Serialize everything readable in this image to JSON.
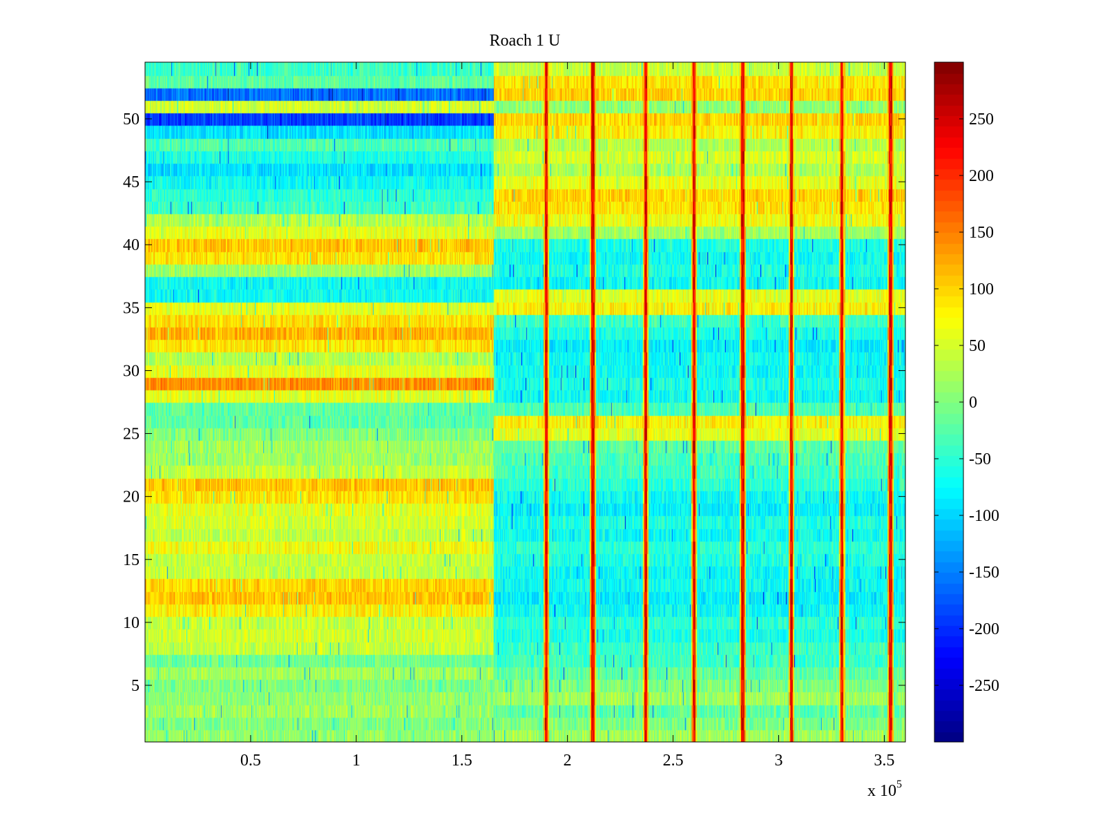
{
  "chart_data": {
    "type": "heatmap",
    "title": "Roach 1 U",
    "xlabel": "",
    "ylabel": "",
    "x_range": [
      0,
      360000
    ],
    "x_scale_label": {
      "base": "x 10",
      "exponent": "5"
    },
    "x_ticks": [
      {
        "value": 0.5,
        "label": "0.5"
      },
      {
        "value": 1.0,
        "label": "1"
      },
      {
        "value": 1.5,
        "label": "1.5"
      },
      {
        "value": 2.0,
        "label": "2"
      },
      {
        "value": 2.5,
        "label": "2.5"
      },
      {
        "value": 3.0,
        "label": "3"
      },
      {
        "value": 3.5,
        "label": "3.5"
      }
    ],
    "x_limits_scaled": [
      0,
      3.6
    ],
    "y_range": [
      0.5,
      54.5
    ],
    "y_ticks": [
      {
        "value": 5,
        "label": "5"
      },
      {
        "value": 10,
        "label": "10"
      },
      {
        "value": 15,
        "label": "15"
      },
      {
        "value": 20,
        "label": "20"
      },
      {
        "value": 25,
        "label": "25"
      },
      {
        "value": 30,
        "label": "30"
      },
      {
        "value": 35,
        "label": "35"
      },
      {
        "value": 40,
        "label": "40"
      },
      {
        "value": 45,
        "label": "45"
      },
      {
        "value": 50,
        "label": "50"
      }
    ],
    "rows": 54,
    "transition_x": 165000,
    "spike_x": [
      190000,
      212000,
      237000,
      260000,
      283000,
      306000,
      330000,
      353000
    ],
    "colorbar": {
      "colormap": "jet",
      "range": [
        -300,
        300
      ],
      "ticks": [
        {
          "value": 250,
          "label": "250"
        },
        {
          "value": 200,
          "label": "200"
        },
        {
          "value": 150,
          "label": "150"
        },
        {
          "value": 100,
          "label": "100"
        },
        {
          "value": 50,
          "label": "50"
        },
        {
          "value": 0,
          "label": "0"
        },
        {
          "value": -50,
          "label": "-50"
        },
        {
          "value": -100,
          "label": "-100"
        },
        {
          "value": -150,
          "label": "-150"
        },
        {
          "value": -200,
          "label": "-200"
        },
        {
          "value": -250,
          "label": "-250"
        }
      ]
    },
    "row_levels_before": [
      10,
      0,
      20,
      10,
      0,
      20,
      -10,
      40,
      50,
      40,
      80,
      110,
      100,
      40,
      40,
      70,
      40,
      50,
      60,
      90,
      110,
      40,
      20,
      20,
      0,
      -20,
      -20,
      60,
      140,
      60,
      30,
      90,
      120,
      90,
      60,
      -70,
      -70,
      20,
      90,
      110,
      60,
      30,
      -40,
      -50,
      -70,
      -90,
      -60,
      -30,
      -90,
      -190,
      50,
      -160,
      -20,
      -40
    ],
    "row_levels_after": [
      20,
      0,
      -20,
      20,
      0,
      -20,
      -40,
      -40,
      -60,
      -50,
      -70,
      -80,
      -70,
      -70,
      -60,
      -50,
      -70,
      -60,
      -80,
      -70,
      -50,
      -40,
      -30,
      -20,
      60,
      80,
      -30,
      -70,
      -60,
      -70,
      -70,
      -80,
      -60,
      -40,
      80,
      60,
      -70,
      -60,
      -70,
      -60,
      20,
      70,
      90,
      100,
      60,
      30,
      50,
      30,
      80,
      100,
      10,
      100,
      90,
      40
    ]
  }
}
